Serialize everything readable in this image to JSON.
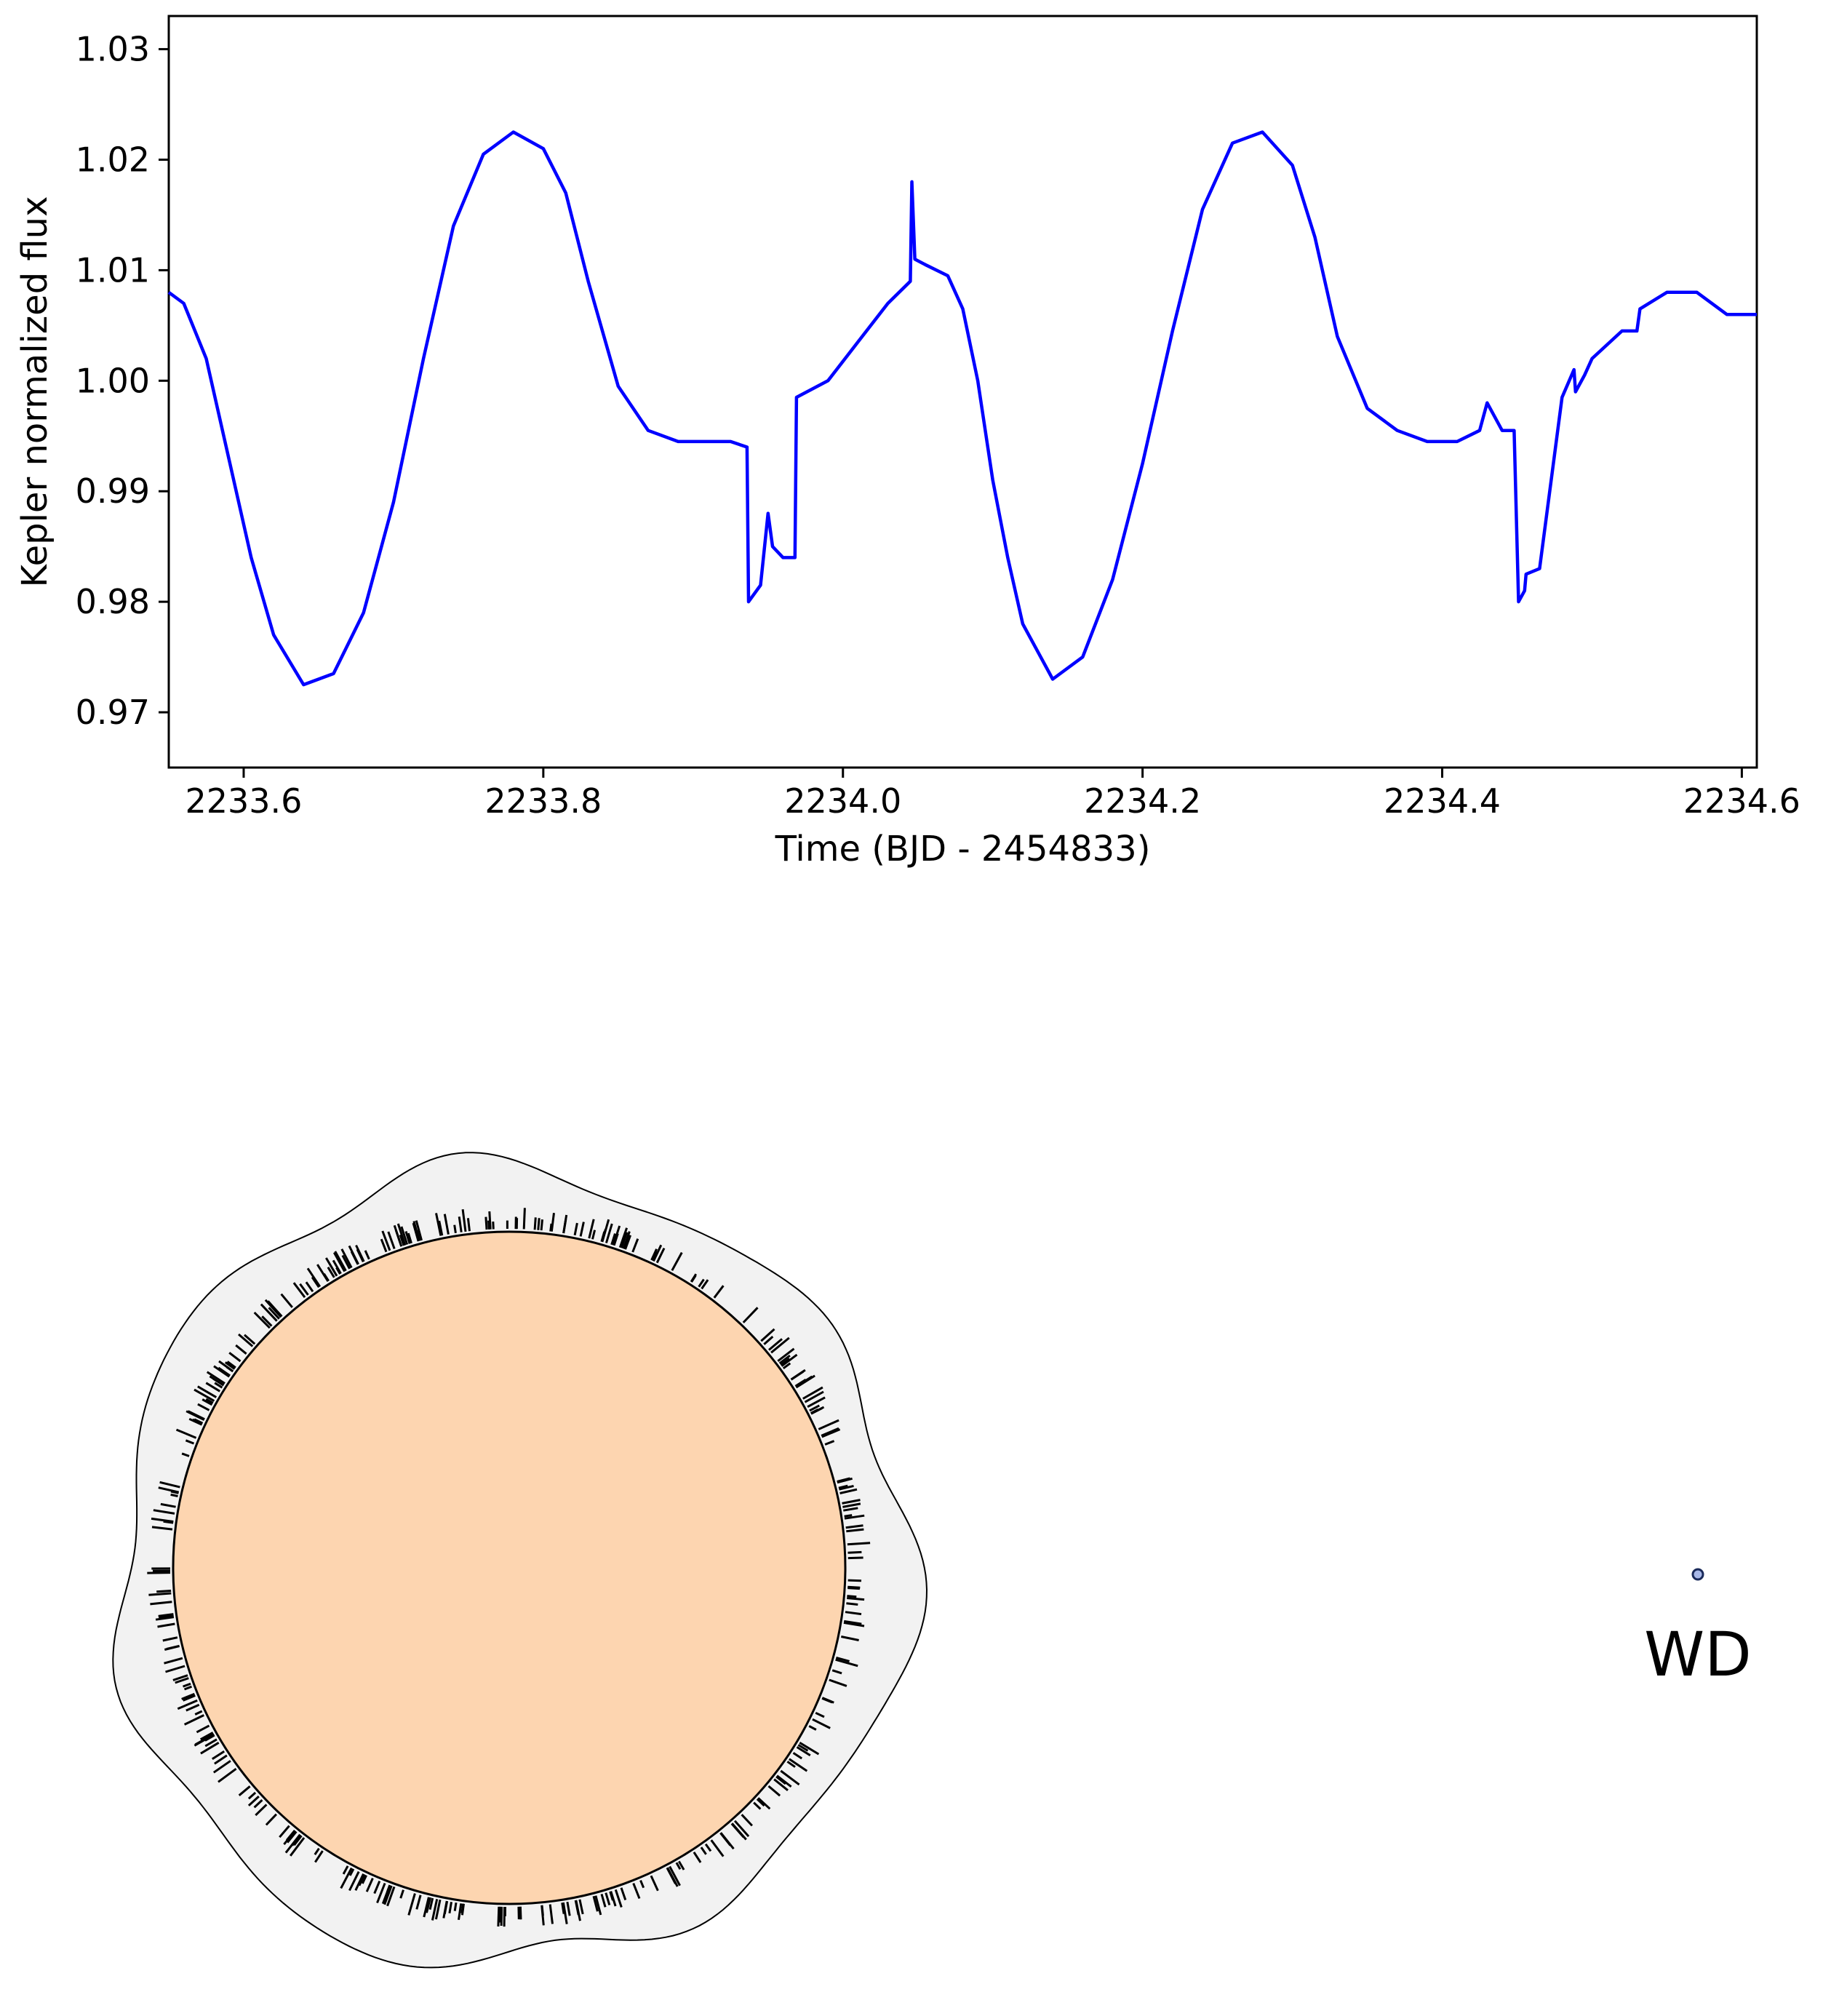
{
  "chart_data": {
    "type": "line",
    "xlabel": "Time (BJD - 2454833)",
    "ylabel": "Kepler normalized flux",
    "xlim": [
      2233.55,
      2234.61
    ],
    "ylim": [
      0.965,
      1.033
    ],
    "xticks": [
      "2233.6",
      "2233.8",
      "2234.0",
      "2234.2",
      "2234.4",
      "2234.6"
    ],
    "yticks": [
      "0.97",
      "0.98",
      "0.99",
      "1.00",
      "1.01",
      "1.02",
      "1.03"
    ],
    "grid": false,
    "line_color": "#0000ff",
    "series": [
      {
        "x": [
          2233.55,
          2233.56,
          2233.575,
          2233.59,
          2233.605,
          2233.62,
          2233.64,
          2233.66,
          2233.68,
          2233.7,
          2233.72,
          2233.74,
          2233.76,
          2233.78,
          2233.8,
          2233.815,
          2233.83,
          2233.85,
          2233.87,
          2233.89,
          2233.91,
          2233.925,
          2233.936,
          2233.937,
          2233.945,
          2233.95,
          2233.953,
          2233.96,
          2233.968,
          2233.969,
          2233.99,
          2234.01,
          2234.03,
          2234.045,
          2234.046,
          2234.048,
          2234.055,
          2234.07,
          2234.08,
          2234.09,
          2234.1,
          2234.11,
          2234.12,
          2234.14,
          2234.16,
          2234.18,
          2234.2,
          2234.22,
          2234.24,
          2234.26,
          2234.28,
          2234.3,
          2234.315,
          2234.33,
          2234.35,
          2234.37,
          2234.39,
          2234.41,
          2234.425,
          2234.43,
          2234.44,
          2234.448,
          2234.451,
          2234.455,
          2234.456,
          2234.465,
          2234.48,
          2234.488,
          2234.489,
          2234.495,
          2234.5,
          2234.52,
          2234.53,
          2234.532,
          2234.55,
          2234.57,
          2234.59,
          2234.61
        ],
        "y": [
          1.008,
          1.007,
          1.002,
          0.993,
          0.984,
          0.977,
          0.9725,
          0.9735,
          0.979,
          0.989,
          1.002,
          1.014,
          1.0205,
          1.0225,
          1.021,
          1.017,
          1.009,
          0.9995,
          0.9955,
          0.9945,
          0.9945,
          0.9945,
          0.994,
          0.98,
          0.9815,
          0.988,
          0.985,
          0.984,
          0.984,
          0.9985,
          1.0,
          1.0035,
          1.007,
          1.009,
          1.018,
          1.011,
          1.0105,
          1.0095,
          1.0065,
          1.0,
          0.991,
          0.984,
          0.978,
          0.973,
          0.975,
          0.982,
          0.9925,
          1.0045,
          1.0155,
          1.0215,
          1.0225,
          1.0195,
          1.013,
          1.004,
          0.9975,
          0.9955,
          0.9945,
          0.9945,
          0.9955,
          0.998,
          0.9955,
          0.9955,
          0.98,
          0.981,
          0.9825,
          0.983,
          0.9985,
          1.001,
          0.999,
          1.0005,
          1.002,
          1.0045,
          1.0045,
          1.0065,
          1.008,
          1.008,
          1.006,
          1.006
        ]
      }
    ]
  },
  "diagram": {
    "star_fill": "#fdd5b0",
    "envelope_fill": "#f2f2f2",
    "wd_fill": "#a8b8e8",
    "wd_label": "WD"
  }
}
